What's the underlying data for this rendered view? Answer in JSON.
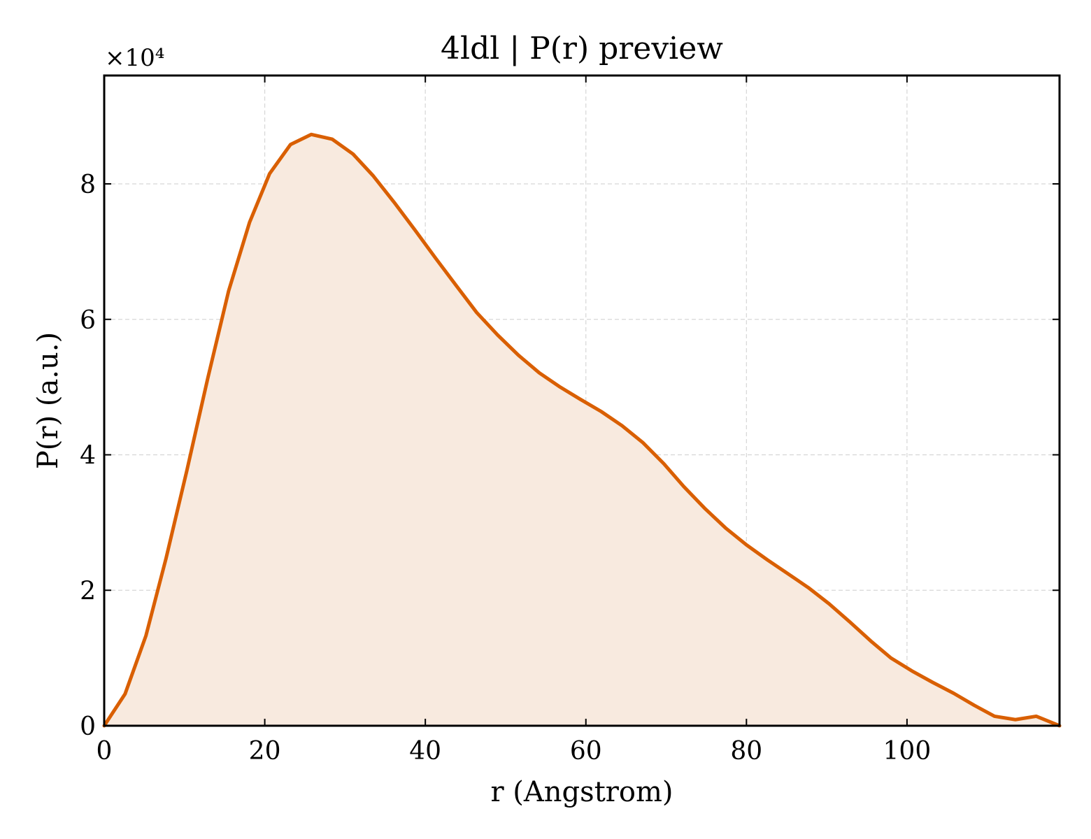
{
  "colors": {
    "line": "#d95f02",
    "fill": "#f8eadf",
    "grid": "#d6d6d6",
    "axes": "#000000",
    "background": "#ffffff"
  },
  "chart_data": {
    "type": "area",
    "title": "4ldl | P(r) preview",
    "xlabel": "r (Angstrom)",
    "ylabel": "P(r) (a.u.)",
    "y_offset_label": "×10⁴",
    "y_scale_factor": 10000,
    "xlim": [
      0,
      119
    ],
    "ylim": [
      0,
      9.6
    ],
    "xticks": [
      0,
      20,
      40,
      60,
      80,
      100
    ],
    "xtick_labels": [
      "0",
      "20",
      "40",
      "60",
      "80",
      "100"
    ],
    "yticks": [
      0,
      2,
      4,
      6,
      8
    ],
    "ytick_labels": [
      "0",
      "2",
      "4",
      "6",
      "8"
    ],
    "grid": true,
    "legend": "none",
    "series": [
      {
        "x": [
          0,
          2.6,
          5.2,
          7.7,
          10.3,
          12.9,
          15.5,
          18.1,
          20.6,
          23.2,
          25.8,
          28.4,
          31.0,
          33.5,
          36.1,
          38.7,
          41.3,
          43.9,
          46.4,
          49.0,
          51.6,
          54.2,
          56.8,
          59.3,
          61.9,
          64.5,
          67.1,
          69.7,
          72.2,
          74.8,
          77.4,
          80.0,
          82.6,
          85.1,
          87.7,
          90.3,
          92.9,
          95.5,
          98.0,
          100.6,
          103.2,
          105.8,
          108.4,
          110.9,
          113.5,
          116.1,
          119.0
        ],
        "y": [
          0,
          0.47,
          1.33,
          2.47,
          3.77,
          5.13,
          6.42,
          7.43,
          8.15,
          8.58,
          8.73,
          8.66,
          8.44,
          8.12,
          7.73,
          7.32,
          6.9,
          6.49,
          6.1,
          5.77,
          5.47,
          5.21,
          5.0,
          4.82,
          4.64,
          4.43,
          4.18,
          3.87,
          3.53,
          3.21,
          2.92,
          2.67,
          2.45,
          2.25,
          2.04,
          1.8,
          1.53,
          1.25,
          1.0,
          0.81,
          0.64,
          0.48,
          0.3,
          0.14,
          0.09,
          0.14,
          0.0
        ]
      }
    ]
  }
}
